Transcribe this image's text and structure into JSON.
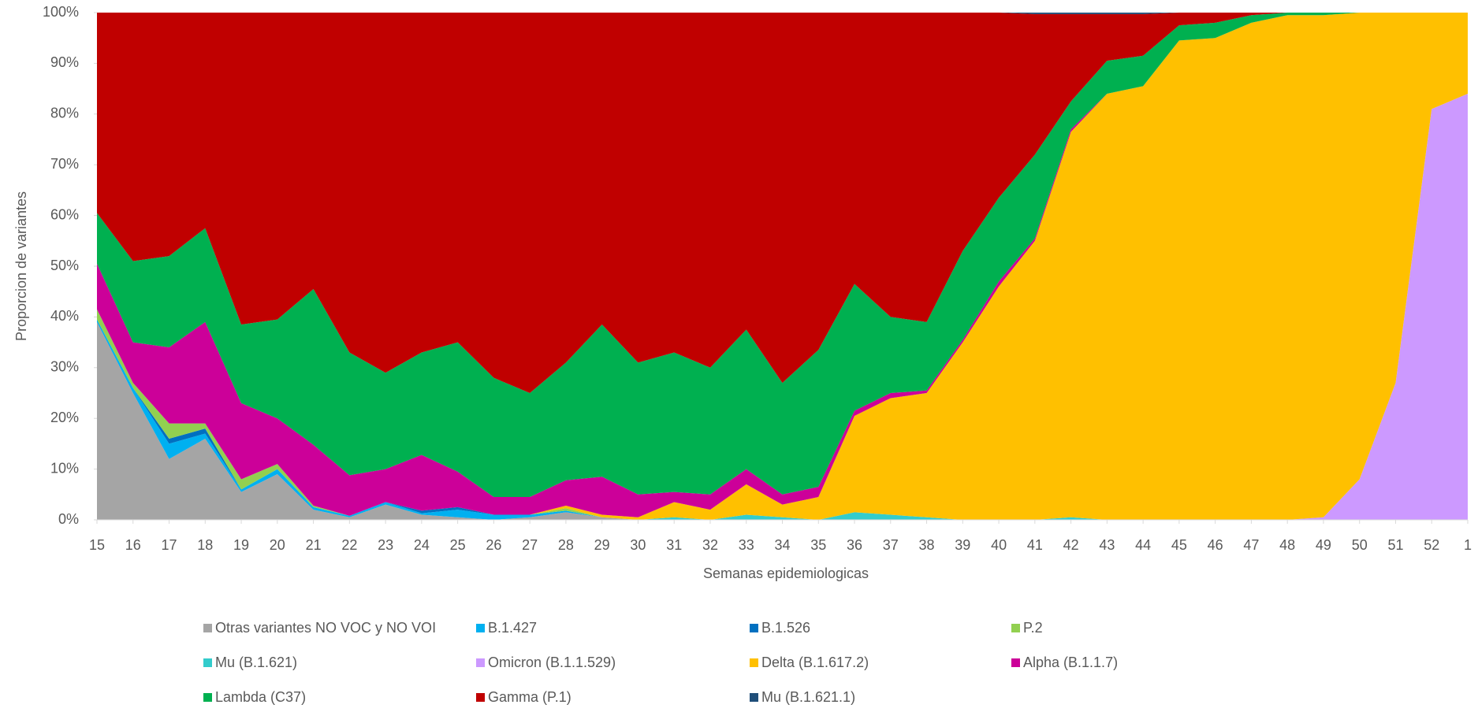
{
  "chart_data": {
    "type": "stacked_area",
    "ylabel": "Proporcion de variantes",
    "xlabel": "Semanas epidemiologicas",
    "categories": [
      "15",
      "16",
      "17",
      "18",
      "19",
      "20",
      "21",
      "22",
      "23",
      "24",
      "25",
      "26",
      "27",
      "28",
      "29",
      "30",
      "31",
      "32",
      "33",
      "34",
      "35",
      "36",
      "37",
      "38",
      "39",
      "40",
      "41",
      "42",
      "43",
      "44",
      "45",
      "46",
      "47",
      "48",
      "49",
      "50",
      "51",
      "52",
      "1"
    ],
    "ylim": [
      0,
      100
    ],
    "yticks": [
      {
        "value": 0,
        "label": "0%"
      },
      {
        "value": 10,
        "label": "10%"
      },
      {
        "value": 20,
        "label": "20%"
      },
      {
        "value": 30,
        "label": "30%"
      },
      {
        "value": 40,
        "label": "40%"
      },
      {
        "value": 50,
        "label": "50%"
      },
      {
        "value": 60,
        "label": "60%"
      },
      {
        "value": 70,
        "label": "70%"
      },
      {
        "value": 80,
        "label": "80%"
      },
      {
        "value": 90,
        "label": "90%"
      },
      {
        "value": 100,
        "label": "100%"
      }
    ],
    "series": [
      {
        "name": "Otras variantes NO VOC y NO VOI",
        "color": "#a5a5a5",
        "values": [
          39,
          25,
          12,
          16,
          5.5,
          9,
          2,
          0.5,
          3,
          1,
          0.5,
          0,
          0.5,
          1.5,
          0.5,
          0,
          0,
          0,
          0,
          0,
          0,
          0,
          0,
          0,
          0,
          0,
          0,
          0,
          0,
          0,
          0,
          0,
          0,
          0,
          0,
          0,
          0,
          0,
          0
        ]
      },
      {
        "name": "B.1.427",
        "color": "#00b0f0",
        "values": [
          0.5,
          1,
          3,
          1,
          0.5,
          1,
          0.5,
          0.3,
          0.5,
          0.3,
          1.5,
          1,
          0.5,
          0.3,
          0,
          0,
          0,
          0,
          0,
          0,
          0,
          0,
          0,
          0,
          0,
          0,
          0,
          0,
          0,
          0,
          0,
          0,
          0,
          0,
          0,
          0,
          0,
          0,
          0
        ]
      },
      {
        "name": "B.1.526",
        "color": "#0070c0",
        "values": [
          0,
          0,
          1,
          1,
          0,
          0,
          0,
          0,
          0,
          0.5,
          0.5,
          0,
          0,
          0,
          0,
          0,
          0,
          0,
          0,
          0,
          0,
          0,
          0,
          0,
          0,
          0,
          0,
          0,
          0,
          0,
          0,
          0,
          0,
          0,
          0,
          0,
          0,
          0,
          0
        ]
      },
      {
        "name": "P.2",
        "color": "#92d050",
        "values": [
          2,
          1,
          3,
          1,
          2,
          1,
          0.3,
          0,
          0,
          0,
          0,
          0,
          0,
          0.5,
          0,
          0,
          0,
          0,
          0,
          0,
          0,
          0,
          0,
          0,
          0,
          0,
          0,
          0,
          0,
          0,
          0,
          0,
          0,
          0,
          0,
          0,
          0,
          0,
          0
        ]
      },
      {
        "name": "Mu (B.1.621)",
        "color": "#33cccc",
        "values": [
          0,
          0,
          0,
          0,
          0,
          0,
          0,
          0,
          0,
          0,
          0,
          0,
          0,
          0,
          0,
          0,
          0.5,
          0,
          1,
          0.5,
          0,
          1.5,
          1,
          0.5,
          0,
          0,
          0,
          0.5,
          0,
          0,
          0,
          0,
          0,
          0,
          0,
          0,
          0,
          0,
          0
        ]
      },
      {
        "name": "Omicron (B.1.1.529)",
        "color": "#cc99ff",
        "values": [
          0,
          0,
          0,
          0,
          0,
          0,
          0,
          0,
          0,
          0,
          0,
          0,
          0,
          0,
          0,
          0,
          0,
          0,
          0,
          0,
          0,
          0,
          0,
          0,
          0,
          0,
          0,
          0,
          0,
          0,
          0,
          0,
          0,
          0,
          0.5,
          8,
          27,
          81,
          84
        ]
      },
      {
        "name": "Delta (B.1.617.2)",
        "color": "#ffc000",
        "values": [
          0,
          0,
          0,
          0,
          0,
          0,
          0,
          0,
          0,
          0,
          0,
          0,
          0,
          0.5,
          0.5,
          0.5,
          3,
          2,
          6,
          2.5,
          4.5,
          19,
          23,
          24.5,
          35,
          46,
          55,
          76,
          84,
          85.5,
          94.5,
          95,
          98,
          99.5,
          99,
          92,
          73,
          19,
          16
        ]
      },
      {
        "name": "Alpha (B.1.1.7)",
        "color": "#cc0099",
        "values": [
          9,
          8,
          15,
          20,
          15,
          9,
          12,
          8,
          6.5,
          11,
          7,
          3.5,
          3.5,
          5,
          7.5,
          4.5,
          2,
          3,
          3,
          2,
          2,
          1,
          1,
          0.5,
          0.5,
          1,
          0.5,
          0.5,
          0,
          0,
          0,
          0,
          0,
          0,
          0,
          0,
          0,
          0,
          0
        ]
      },
      {
        "name": "Lambda (C37)",
        "color": "#00b050",
        "values": [
          10,
          16,
          18,
          18.5,
          15.5,
          19.5,
          30.7,
          24.2,
          19,
          20.2,
          25.5,
          23.5,
          20.5,
          23.2,
          30,
          26,
          27.5,
          25,
          27.5,
          22,
          27,
          25,
          15,
          13.5,
          17.5,
          16.5,
          16.5,
          5.5,
          6.5,
          6,
          3,
          3,
          1.5,
          0.5,
          0.5,
          0,
          0,
          0,
          0
        ]
      },
      {
        "name": "Gamma (P.1)",
        "color": "#c00000",
        "values": [
          39.5,
          49,
          48,
          42.5,
          61.5,
          60.5,
          54.5,
          67,
          71,
          67,
          65,
          72,
          75,
          69,
          61.5,
          69,
          67,
          70,
          62.5,
          73,
          66.5,
          53.5,
          60,
          61,
          47,
          36.5,
          27.7,
          17.2,
          9.2,
          8.2,
          2.5,
          2,
          0.5,
          0,
          0,
          0,
          0,
          0,
          0
        ]
      },
      {
        "name": "Mu (B.1.621.1)",
        "color": "#1f4e79",
        "values": [
          0,
          0,
          0,
          0,
          0,
          0,
          0,
          0,
          0,
          0,
          0,
          0,
          0,
          0,
          0,
          0,
          0,
          0,
          0,
          0,
          0,
          0,
          0,
          0,
          0,
          0,
          0.3,
          0.3,
          0.3,
          0.3,
          0,
          0,
          0,
          0,
          0,
          0,
          0,
          0,
          0
        ]
      }
    ]
  }
}
